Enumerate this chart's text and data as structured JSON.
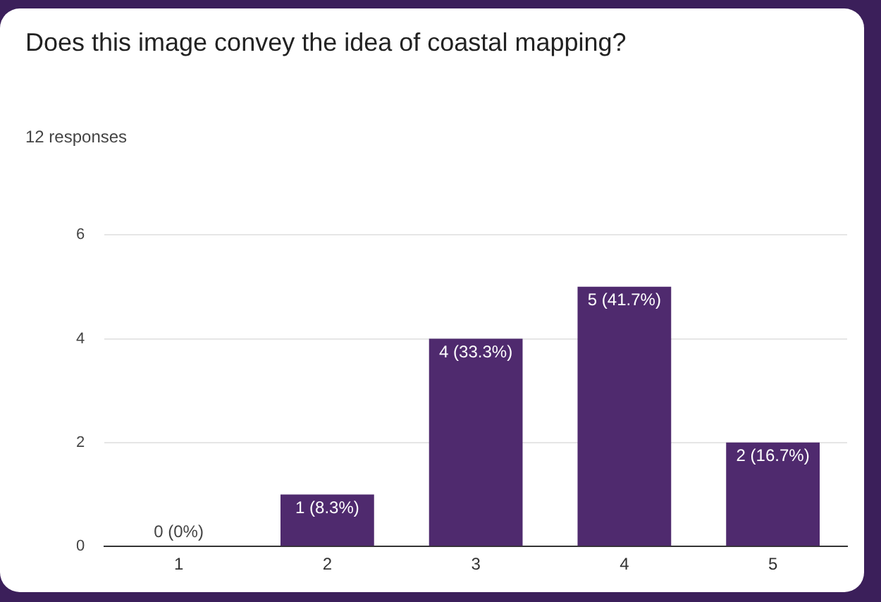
{
  "chart_data": {
    "type": "bar",
    "title": "Does this image convey the idea of coastal mapping?",
    "subtitle": "12 responses",
    "categories": [
      "1",
      "2",
      "3",
      "4",
      "5"
    ],
    "values": [
      0,
      1,
      4,
      5,
      2
    ],
    "value_labels": [
      "0 (0%)",
      "1 (8.3%)",
      "4 (33.3%)",
      "5 (41.7%)",
      "2 (16.7%)"
    ],
    "color": "#4f2a6e",
    "ylim": [
      0,
      6
    ],
    "yticks": [
      0,
      2,
      4,
      6
    ],
    "grid": "y",
    "legend": false
  }
}
